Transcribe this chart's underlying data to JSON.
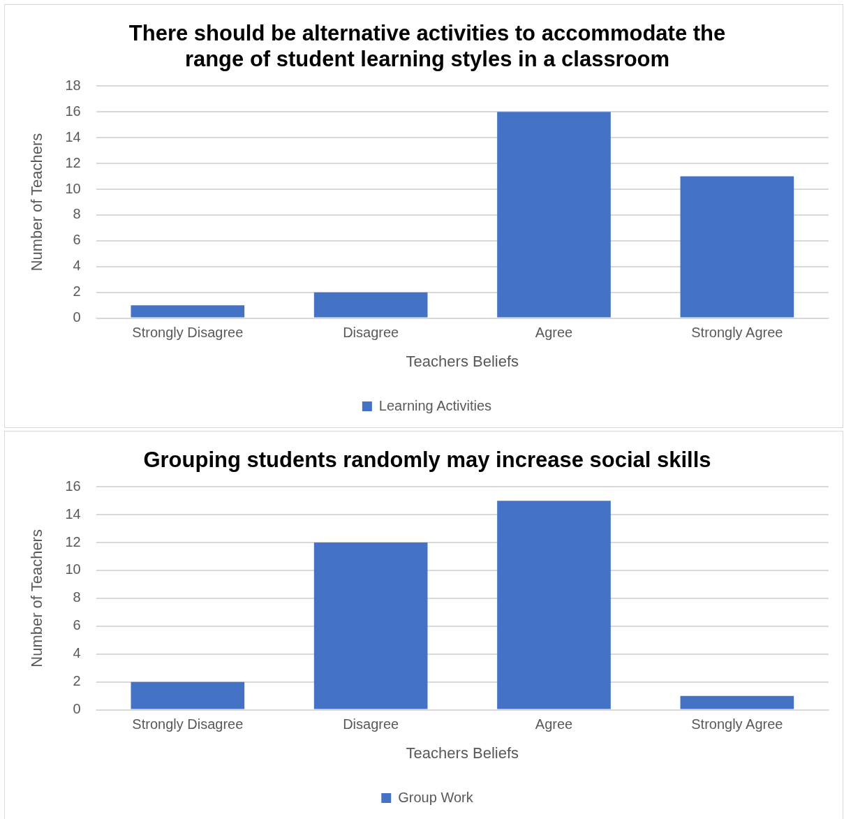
{
  "chart_data": [
    {
      "type": "bar",
      "title": "There should be alternative activities to accommodate the range of student learning styles in a classroom",
      "xlabel": "Teachers Beliefs",
      "ylabel": "Number of Teachers",
      "categories": [
        "Strongly Disagree",
        "Disagree",
        "Agree",
        "Strongly Agree"
      ],
      "series": [
        {
          "name": "Learning Activities",
          "color": "#4472c4",
          "values": [
            1,
            2,
            16,
            11
          ]
        }
      ],
      "ylim": [
        0,
        18
      ],
      "yticks": [
        0,
        2,
        4,
        6,
        8,
        10,
        12,
        14,
        16,
        18
      ],
      "grid": "y",
      "legend": "bottom"
    },
    {
      "type": "bar",
      "title": "Grouping students randomly may increase social skills",
      "xlabel": "Teachers Beliefs",
      "ylabel": "Number of Teachers",
      "categories": [
        "Strongly Disagree",
        "Disagree",
        "Agree",
        "Strongly Agree"
      ],
      "series": [
        {
          "name": "Group Work",
          "color": "#4472c4",
          "values": [
            2,
            12,
            15,
            1
          ]
        }
      ],
      "ylim": [
        0,
        16
      ],
      "yticks": [
        0,
        2,
        4,
        6,
        8,
        10,
        12,
        14,
        16
      ],
      "grid": "y",
      "legend": "bottom"
    }
  ]
}
